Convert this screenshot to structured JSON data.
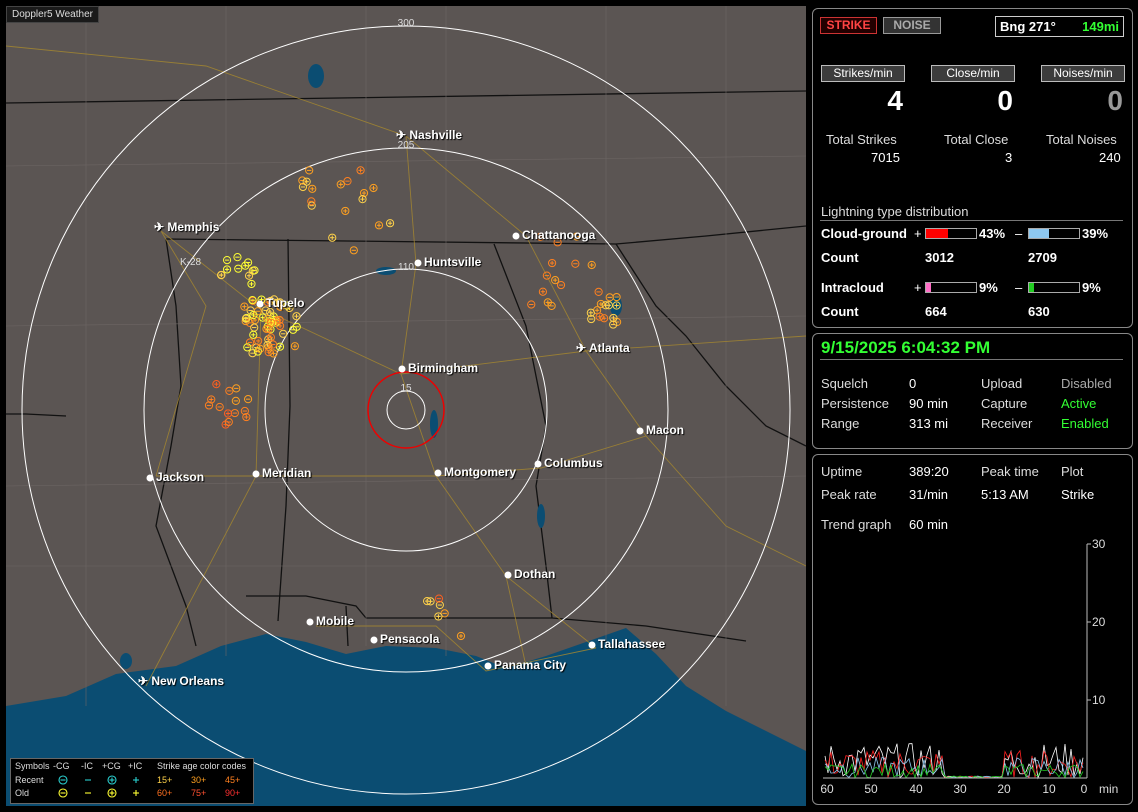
{
  "app_title": "Doppler5 Weather",
  "map": {
    "range_labels": [
      "300",
      "205",
      "110",
      "15"
    ],
    "cities": [
      {
        "name": "Nashville",
        "airport": true
      },
      {
        "name": "Memphis",
        "airport": true
      },
      {
        "name": "Chattanooga",
        "airport": false
      },
      {
        "name": "Huntsville",
        "airport": false
      },
      {
        "name": "Tupelo",
        "airport": false
      },
      {
        "name": "Atlanta",
        "airport": true
      },
      {
        "name": "Birmingham",
        "airport": false
      },
      {
        "name": "Macon",
        "airport": false
      },
      {
        "name": "Jackson",
        "airport": false
      },
      {
        "name": "Meridian",
        "airport": false
      },
      {
        "name": "Montgomery",
        "airport": false
      },
      {
        "name": "Columbus",
        "airport": false
      },
      {
        "name": "Dothan",
        "airport": false
      },
      {
        "name": "Mobile",
        "airport": false
      },
      {
        "name": "Pensacola",
        "airport": false
      },
      {
        "name": "Tallahassee",
        "airport": false
      },
      {
        "name": "Panama City",
        "airport": false
      },
      {
        "name": "New Orleans",
        "airport": true
      }
    ],
    "marker_label": "K-28"
  },
  "legend": {
    "symbols_label": "Symbols",
    "columns": [
      "-CG",
      "-IC",
      "+CG",
      "+IC"
    ],
    "age_title": "Strike age color codes",
    "recent_label": "Recent",
    "old_label": "Old",
    "recent_ages": [
      "15+",
      "30+",
      "45+"
    ],
    "old_ages": [
      "60+",
      "75+",
      "90+"
    ]
  },
  "header": {
    "strike_btn": "STRIKE",
    "noise_btn": "NOISE",
    "bearing": "Bng 271°",
    "distance": "149mi"
  },
  "rates": {
    "strikes_label": "Strikes/min",
    "close_label": "Close/min",
    "noises_label": "Noises/min",
    "strikes": "4",
    "close": "0",
    "noises": "0"
  },
  "totals": {
    "strikes_label": "Total Strikes",
    "close_label": "Total Close",
    "noises_label": "Total Noises",
    "strikes": "7015",
    "close": "3",
    "noises": "240"
  },
  "distribution": {
    "title": "Lightning type distribution",
    "cg_label": "Cloud-ground",
    "ic_label": "Intracloud",
    "count_label": "Count",
    "plus": "+",
    "minus": "–",
    "cg_pos_pct": "43%",
    "cg_neg_pct": "39%",
    "ic_pos_pct": "9%",
    "ic_neg_pct": "9%",
    "cg_pos_fraction": 0.43,
    "cg_neg_fraction": 0.39,
    "ic_pos_fraction": 0.09,
    "ic_neg_fraction": 0.09,
    "cg_pos_count": "3012",
    "cg_neg_count": "2709",
    "ic_pos_count": "664",
    "ic_neg_count": "630",
    "colors": {
      "cg_pos": "#ff0000",
      "cg_neg": "#8ec8f0",
      "ic_pos": "#ff6ec7",
      "ic_neg": "#22cc22"
    }
  },
  "status": {
    "datetime": "9/15/2025 6:04:32 PM",
    "squelch_label": "Squelch",
    "squelch": "0",
    "persistence_label": "Persistence",
    "persistence": "90 min",
    "range_label": "Range",
    "range": "313 mi",
    "upload_label": "Upload",
    "upload": "Disabled",
    "capture_label": "Capture",
    "capture": "Active",
    "receiver_label": "Receiver",
    "receiver": "Enabled"
  },
  "stats": {
    "uptime_label": "Uptime",
    "uptime": "389:20",
    "peak_time_label": "Peak time",
    "peak_time": "5:13 AM",
    "plot_label": "Plot",
    "plot": "Strike",
    "peak_rate_label": "Peak rate",
    "peak_rate": "31/min",
    "trend_label": "Trend graph",
    "trend": "60 min"
  },
  "trend_graph": {
    "y_ticks": [
      "30",
      "20",
      "10"
    ],
    "x_ticks": [
      "60",
      "50",
      "40",
      "30",
      "20",
      "10",
      "0"
    ],
    "x_unit": "min"
  }
}
